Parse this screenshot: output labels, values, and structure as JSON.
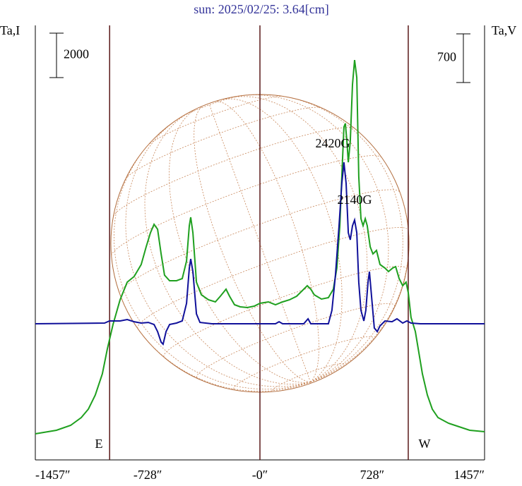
{
  "chart_data": {
    "type": "line",
    "title": "sun: 2025/02/25: 3.64[cm]",
    "xlim": [
      -1457,
      1457
    ],
    "xticks": [
      {
        "value": -1457,
        "label": "-1457″"
      },
      {
        "value": -728,
        "label": "-728″"
      },
      {
        "value": 0,
        "label": "-0″"
      },
      {
        "value": 728,
        "label": "728″"
      },
      {
        "value": 1457,
        "label": "1457″"
      }
    ],
    "ylim": [
      0,
      19560
    ],
    "y2lim": [
      -1957,
      4290
    ],
    "vlines": [
      -975,
      0,
      962
    ],
    "scale_bars": [
      {
        "value": 2000,
        "axis": "y"
      },
      {
        "value": 700,
        "axis": "y2"
      }
    ],
    "annotations": [
      "2420G",
      "2140G",
      "E",
      "W"
    ],
    "series": [
      {
        "name": "Ta,I",
        "color": "#1fa01f",
        "axis": "y",
        "x": [
          -1457,
          -1320,
          -1228,
          -1159,
          -1113,
          -1068,
          -1022,
          -990,
          -953,
          -907,
          -861,
          -816,
          -770,
          -738,
          -710,
          -687,
          -664,
          -641,
          -619,
          -586,
          -541,
          -504,
          -476,
          -458,
          -449,
          -435,
          -412,
          -380,
          -334,
          -289,
          -257,
          -220,
          -197,
          -165,
          -128,
          -82,
          -37,
          0,
          55,
          101,
          147,
          192,
          238,
          275,
          307,
          330,
          353,
          399,
          444,
          476,
          499,
          518,
          531,
          545,
          554,
          564,
          573,
          586,
          600,
          614,
          628,
          641,
          655,
          669,
          683,
          696,
          715,
          733,
          756,
          779,
          811,
          834,
          861,
          880,
          903,
          926,
          948,
          962,
          980,
          1008,
          1031,
          1054,
          1086,
          1118,
          1155,
          1223,
          1292,
          1361,
          1457
        ],
        "values": [
          1175,
          1334,
          1556,
          1905,
          2286,
          2921,
          3874,
          4985,
          6096,
          7207,
          8001,
          8255,
          8795,
          9589,
          10224,
          10605,
          10382,
          9271,
          8319,
          8065,
          8065,
          8160,
          8954,
          10541,
          10922,
          10224,
          8001,
          7430,
          7207,
          7112,
          7366,
          7684,
          7366,
          6985,
          6890,
          6858,
          6922,
          7049,
          7112,
          6985,
          7112,
          7207,
          7366,
          7620,
          7842,
          7684,
          7430,
          7239,
          7303,
          7684,
          8636,
          10541,
          12764,
          14986,
          15145,
          14351,
          13399,
          14351,
          16891,
          18002,
          17209,
          12764,
          10859,
          10541,
          10859,
          10541,
          9589,
          9271,
          9430,
          8795,
          8636,
          8477,
          8636,
          8700,
          8160,
          7842,
          8001,
          7525,
          6414,
          5779,
          4826,
          3874,
          2921,
          2286,
          1905,
          1651,
          1492,
          1334,
          1270
        ]
      },
      {
        "name": "Ta,V",
        "color": "#10109a",
        "axis": "y2",
        "x": [
          -1457,
          -1008,
          -976,
          -953,
          -907,
          -861,
          -816,
          -770,
          -724,
          -687,
          -664,
          -641,
          -628,
          -609,
          -586,
          -541,
          -504,
          -476,
          -458,
          -449,
          -435,
          -412,
          -389,
          -312,
          -37,
          101,
          124,
          147,
          284,
          312,
          330,
          444,
          467,
          490,
          513,
          531,
          545,
          559,
          573,
          586,
          600,
          614,
          628,
          641,
          655,
          674,
          687,
          701,
          710,
          724,
          742,
          761,
          779,
          811,
          857,
          889,
          926,
          953,
          980,
          1040,
          1086,
          1457
        ],
        "values": [
          0,
          10,
          41,
          41,
          41,
          61,
          30,
          10,
          20,
          -10,
          -112,
          -264,
          -294,
          -112,
          -10,
          10,
          41,
          294,
          799,
          932,
          750,
          142,
          20,
          0,
          0,
          0,
          30,
          0,
          0,
          71,
          0,
          0,
          193,
          700,
          1409,
          2018,
          2322,
          2018,
          1308,
          1207,
          1409,
          1491,
          1308,
          598,
          193,
          41,
          193,
          598,
          750,
          395,
          -61,
          -112,
          -30,
          41,
          30,
          71,
          10,
          41,
          10,
          0,
          0,
          0
        ]
      }
    ]
  }
}
